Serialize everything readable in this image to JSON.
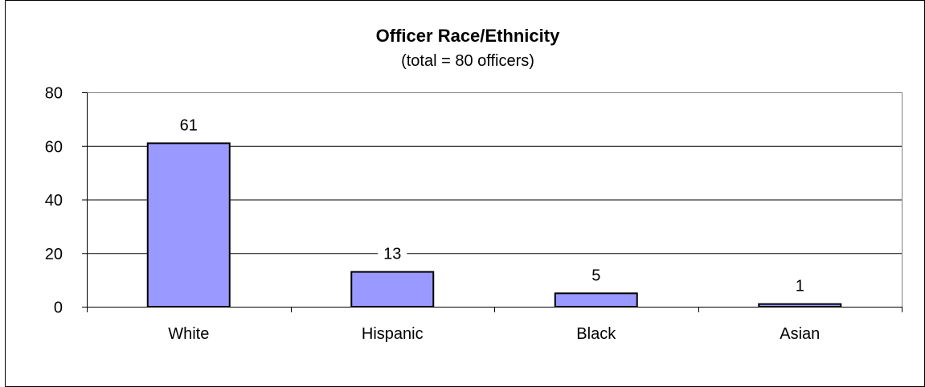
{
  "chart_data": {
    "type": "bar",
    "title": "Officer Race/Ethnicity",
    "subtitle": "(total = 80 officers)",
    "categories": [
      "White",
      "Hispanic",
      "Black",
      "Asian"
    ],
    "values": [
      61,
      13,
      5,
      1
    ],
    "data_labels": [
      "61",
      "13",
      "5",
      "1"
    ],
    "xlabel": "",
    "ylabel": "",
    "ylim": [
      0,
      80
    ],
    "yticks": [
      0,
      20,
      40,
      60,
      80
    ],
    "grid": true,
    "legend": "none",
    "colors": {
      "bar_fill": "#9999ff",
      "bar_stroke": "#000000",
      "gridline": "#000000",
      "plot_border": "#808080",
      "background": "#ffffff"
    }
  }
}
